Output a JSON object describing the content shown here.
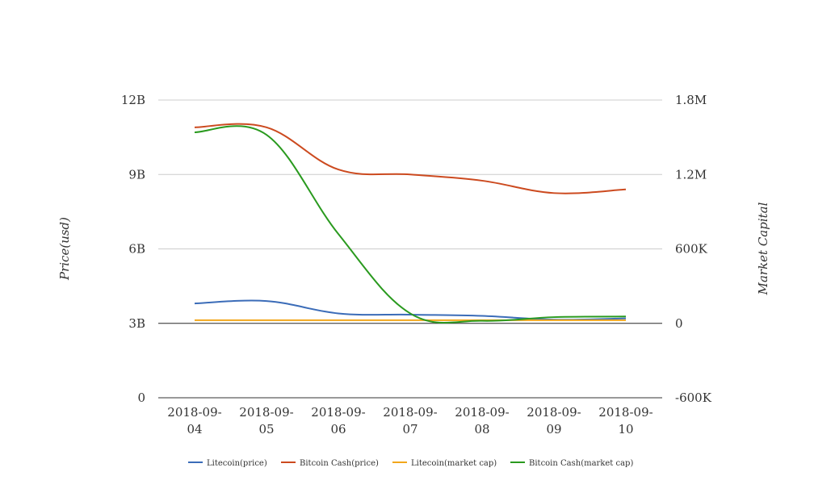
{
  "chart_data": {
    "type": "line",
    "title": "",
    "x": [
      "2018-09-04",
      "2018-09-05",
      "2018-09-06",
      "2018-09-07",
      "2018-09-08",
      "2018-09-09",
      "2018-09-10"
    ],
    "x_tick_lines": [
      [
        "2018-09-",
        "04"
      ],
      [
        "2018-09-",
        "05"
      ],
      [
        "2018-09-",
        "06"
      ],
      [
        "2018-09-",
        "07"
      ],
      [
        "2018-09-",
        "08"
      ],
      [
        "2018-09-",
        "09"
      ],
      [
        "2018-09-",
        "10"
      ]
    ],
    "left_axis": {
      "label": "Price(usd)",
      "ylim": [
        0,
        12000000000
      ],
      "ticks": [
        0,
        3000000000,
        6000000000,
        9000000000,
        12000000000
      ],
      "tick_labels": [
        "0",
        "3B",
        "6B",
        "9B",
        "12B"
      ]
    },
    "right_axis": {
      "label": "Market Capital",
      "ylim": [
        -600000,
        1800000
      ],
      "ticks": [
        -600000,
        0,
        600000,
        1200000,
        1800000
      ],
      "tick_labels": [
        "-600K",
        "0",
        "600K",
        "1.2M",
        "1.8M"
      ]
    },
    "series": [
      {
        "name": "Litecoin(price)",
        "axis": "left",
        "color": "#3b6cb8",
        "values": [
          3800000000,
          3900000000,
          3400000000,
          3350000000,
          3300000000,
          3150000000,
          3200000000
        ]
      },
      {
        "name": "Bitcoin Cash(price)",
        "axis": "left",
        "color": "#cc4a1f",
        "values": [
          10900000000,
          10900000000,
          9200000000,
          9000000000,
          8750000000,
          8250000000,
          8400000000
        ]
      },
      {
        "name": "Litecoin(market cap)",
        "axis": "right",
        "color": "#f2a71b",
        "values": [
          25000,
          25000,
          25000,
          25000,
          25000,
          25000,
          25000
        ]
      },
      {
        "name": "Bitcoin Cash(market cap)",
        "axis": "right",
        "color": "#2a9a1f",
        "values": [
          1540000,
          1520000,
          720000,
          80000,
          20000,
          50000,
          55000
        ]
      }
    ],
    "grid": true,
    "legend_position": "bottom"
  }
}
